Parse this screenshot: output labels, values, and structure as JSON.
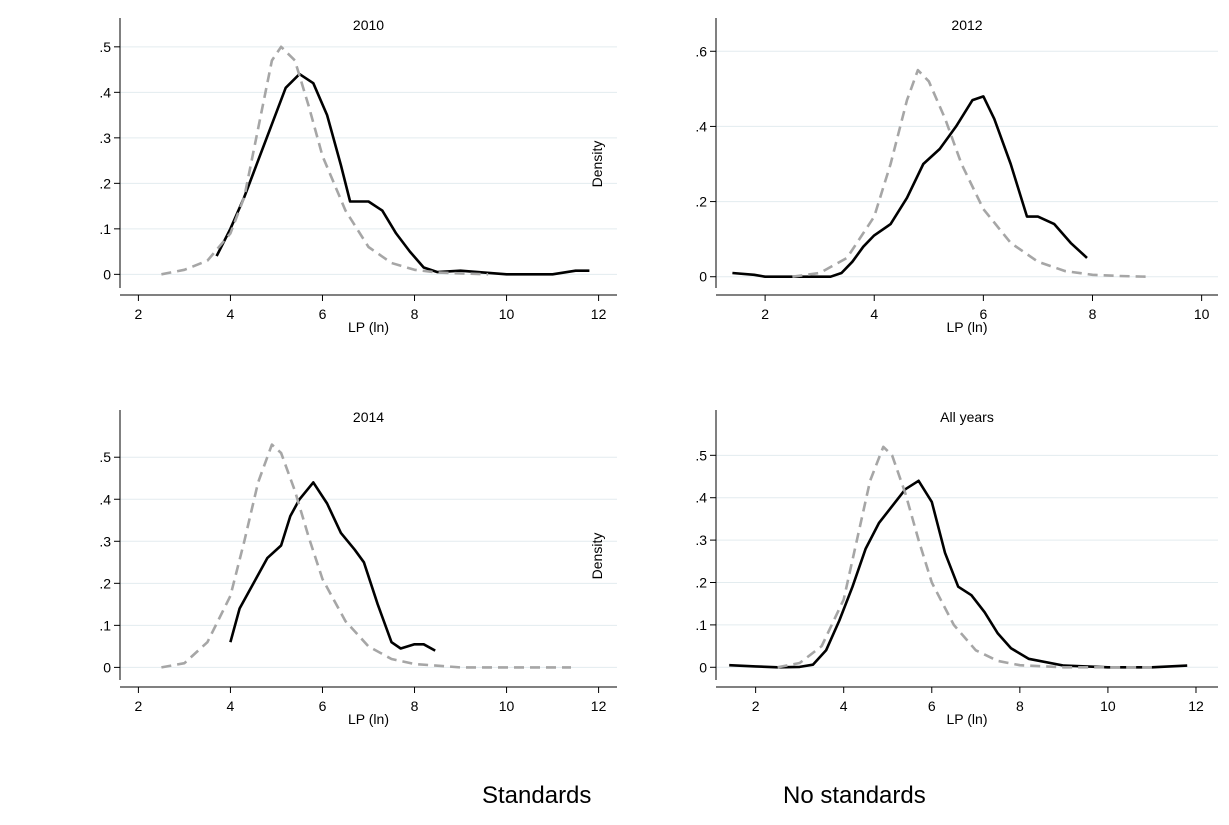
{
  "chart_data": [
    {
      "type": "line",
      "title": "2010",
      "xlabel": "LP (ln)",
      "ylabel": "",
      "xlim": [
        1.6,
        12.4
      ],
      "ylim": [
        -0.03,
        0.515
      ],
      "xticks": [
        2,
        4,
        6,
        8,
        10,
        12
      ],
      "xtick_labels": [
        "2",
        "4",
        "6",
        "8",
        "10",
        "12"
      ],
      "yticks": [
        0,
        0.1,
        0.2,
        0.3,
        0.4,
        0.5
      ],
      "ytick_labels": [
        "0",
        ".1",
        ".2",
        ".3",
        ".4",
        ".5"
      ],
      "grid": true,
      "series": [
        {
          "name": "Standards",
          "style": "solid",
          "color": "#000000",
          "x": [
            3.7,
            4.0,
            4.3,
            4.6,
            4.9,
            5.2,
            5.5,
            5.8,
            6.1,
            6.4,
            6.6,
            7.0,
            7.3,
            7.6,
            7.9,
            8.2,
            8.5,
            9.0,
            10.0,
            11.0,
            11.5,
            11.8
          ],
          "y": [
            0.04,
            0.1,
            0.17,
            0.25,
            0.33,
            0.41,
            0.44,
            0.42,
            0.35,
            0.24,
            0.16,
            0.16,
            0.14,
            0.09,
            0.05,
            0.015,
            0.005,
            0.008,
            0.0,
            0.0,
            0.008,
            0.008
          ]
        },
        {
          "name": "No standards",
          "style": "dashed",
          "color": "#a6a6a6",
          "x": [
            2.5,
            3.0,
            3.5,
            4.0,
            4.3,
            4.6,
            4.9,
            5.1,
            5.4,
            5.7,
            6.0,
            6.5,
            7.0,
            7.5,
            8.0,
            8.5,
            9.0,
            9.6
          ],
          "y": [
            0.0,
            0.01,
            0.03,
            0.09,
            0.17,
            0.32,
            0.47,
            0.5,
            0.47,
            0.37,
            0.26,
            0.14,
            0.06,
            0.025,
            0.01,
            0.004,
            0.002,
            0.0
          ]
        }
      ]
    },
    {
      "type": "line",
      "title": "2012",
      "xlabel": "LP (ln)",
      "ylabel": "Density",
      "xlim": [
        1.1,
        10.3
      ],
      "ylim": [
        -0.03,
        0.63
      ],
      "xticks": [
        2,
        4,
        6,
        8,
        10
      ],
      "xtick_labels": [
        "2",
        "4",
        "6",
        "8",
        "10"
      ],
      "yticks": [
        0,
        0.2,
        0.4,
        0.6
      ],
      "ytick_labels": [
        "0",
        ".2",
        ".4",
        ".6"
      ],
      "grid": true,
      "series": [
        {
          "name": "Standards",
          "style": "solid",
          "color": "#000000",
          "x": [
            1.4,
            1.8,
            2.0,
            2.5,
            3.0,
            3.2,
            3.4,
            3.6,
            3.8,
            4.0,
            4.3,
            4.6,
            4.9,
            5.2,
            5.5,
            5.8,
            6.0,
            6.2,
            6.5,
            6.8,
            7.0,
            7.3,
            7.6,
            7.9
          ],
          "y": [
            0.01,
            0.005,
            0.0,
            0.0,
            0.0,
            0.0,
            0.01,
            0.04,
            0.08,
            0.11,
            0.14,
            0.21,
            0.3,
            0.34,
            0.4,
            0.47,
            0.48,
            0.42,
            0.3,
            0.16,
            0.16,
            0.14,
            0.09,
            0.05
          ]
        },
        {
          "name": "No standards",
          "style": "dashed",
          "color": "#a6a6a6",
          "x": [
            2.5,
            3.0,
            3.5,
            4.0,
            4.3,
            4.6,
            4.8,
            5.0,
            5.3,
            5.6,
            6.0,
            6.5,
            7.0,
            7.5,
            8.0,
            8.5,
            9.0
          ],
          "y": [
            0.0,
            0.01,
            0.05,
            0.16,
            0.3,
            0.47,
            0.55,
            0.52,
            0.42,
            0.3,
            0.18,
            0.09,
            0.04,
            0.015,
            0.005,
            0.002,
            0.0
          ]
        }
      ]
    },
    {
      "type": "line",
      "title": "2014",
      "xlabel": "LP (ln)",
      "ylabel": "",
      "xlim": [
        1.6,
        12.4
      ],
      "ylim": [
        -0.03,
        0.56
      ],
      "xticks": [
        2,
        4,
        6,
        8,
        10,
        12
      ],
      "xtick_labels": [
        "2",
        "4",
        "6",
        "8",
        "10",
        "12"
      ],
      "yticks": [
        0,
        0.1,
        0.2,
        0.3,
        0.4,
        0.5
      ],
      "ytick_labels": [
        "0",
        ".1",
        ".2",
        ".3",
        ".4",
        ".5"
      ],
      "grid": true,
      "series": [
        {
          "name": "Standards",
          "style": "solid",
          "color": "#000000",
          "x": [
            4.0,
            4.2,
            4.5,
            4.8,
            5.1,
            5.3,
            5.5,
            5.8,
            6.1,
            6.4,
            6.7,
            6.9,
            7.2,
            7.5,
            7.7,
            8.0,
            8.2,
            8.45
          ],
          "y": [
            0.06,
            0.14,
            0.2,
            0.26,
            0.29,
            0.36,
            0.4,
            0.44,
            0.39,
            0.32,
            0.28,
            0.25,
            0.15,
            0.06,
            0.045,
            0.055,
            0.055,
            0.04
          ]
        },
        {
          "name": "No standards",
          "style": "dashed",
          "color": "#a6a6a6",
          "x": [
            2.5,
            3.0,
            3.5,
            4.0,
            4.3,
            4.6,
            4.9,
            5.1,
            5.4,
            5.7,
            6.0,
            6.5,
            7.0,
            7.5,
            8.0,
            9.0,
            10.0,
            11.4
          ],
          "y": [
            0.0,
            0.01,
            0.06,
            0.17,
            0.3,
            0.44,
            0.53,
            0.51,
            0.42,
            0.31,
            0.21,
            0.11,
            0.05,
            0.02,
            0.008,
            0.0,
            0.0,
            0.0
          ]
        }
      ]
    },
    {
      "type": "line",
      "title": "All years",
      "xlabel": "LP (ln)",
      "ylabel": "Density",
      "xlim": [
        1.1,
        12.5
      ],
      "ylim": [
        -0.03,
        0.555
      ],
      "xticks": [
        2,
        4,
        6,
        8,
        10,
        12
      ],
      "xtick_labels": [
        "2",
        "4",
        "6",
        "8",
        "10",
        "12"
      ],
      "yticks": [
        0,
        0.1,
        0.2,
        0.3,
        0.4,
        0.5
      ],
      "ytick_labels": [
        "0",
        ".1",
        ".2",
        ".3",
        ".4",
        ".5"
      ],
      "grid": true,
      "series": [
        {
          "name": "Standards",
          "style": "solid",
          "color": "#000000",
          "x": [
            1.4,
            2.0,
            2.5,
            3.0,
            3.3,
            3.6,
            3.9,
            4.2,
            4.5,
            4.8,
            5.1,
            5.4,
            5.7,
            6.0,
            6.3,
            6.6,
            6.9,
            7.2,
            7.5,
            7.8,
            8.2,
            9.0,
            10.0,
            11.0,
            11.8
          ],
          "y": [
            0.005,
            0.002,
            0.0,
            0.001,
            0.006,
            0.04,
            0.11,
            0.19,
            0.28,
            0.34,
            0.38,
            0.42,
            0.44,
            0.39,
            0.27,
            0.19,
            0.17,
            0.13,
            0.08,
            0.045,
            0.02,
            0.004,
            0.0,
            0.0,
            0.004
          ]
        },
        {
          "name": "No standards",
          "style": "dashed",
          "color": "#a6a6a6",
          "x": [
            2.5,
            3.0,
            3.5,
            4.0,
            4.3,
            4.6,
            4.9,
            5.1,
            5.4,
            5.7,
            6.0,
            6.5,
            7.0,
            7.5,
            8.0,
            9.0,
            10.0,
            11.0
          ],
          "y": [
            0.0,
            0.01,
            0.05,
            0.16,
            0.3,
            0.44,
            0.52,
            0.5,
            0.41,
            0.3,
            0.2,
            0.1,
            0.04,
            0.015,
            0.005,
            0.0,
            0.0,
            0.0
          ]
        }
      ]
    }
  ],
  "legend": {
    "placement": "bottom",
    "items": [
      {
        "label": "Standards",
        "style": "solid",
        "color": "#000000"
      },
      {
        "label": "No standards",
        "style": "dashed",
        "color": "#a6a6a6"
      }
    ]
  }
}
